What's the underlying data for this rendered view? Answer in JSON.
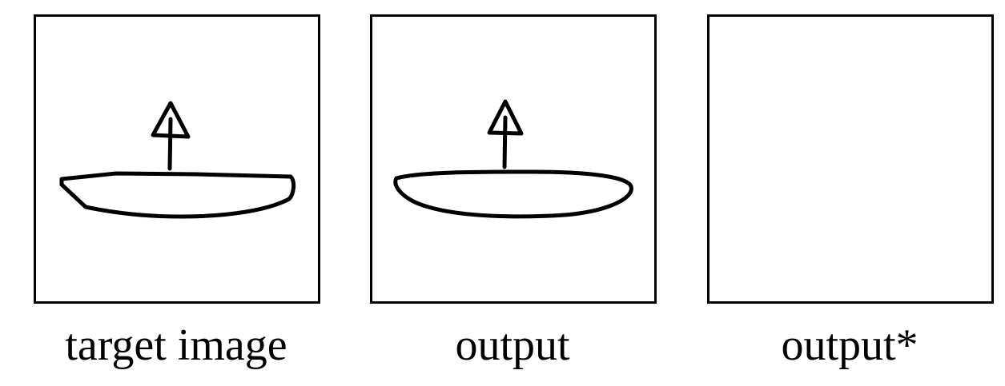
{
  "panels": [
    {
      "caption": "target image",
      "drawing": "boat-sketch"
    },
    {
      "caption": "output",
      "drawing": "boat-sketch"
    },
    {
      "caption": "output*",
      "drawing": "blank"
    }
  ]
}
